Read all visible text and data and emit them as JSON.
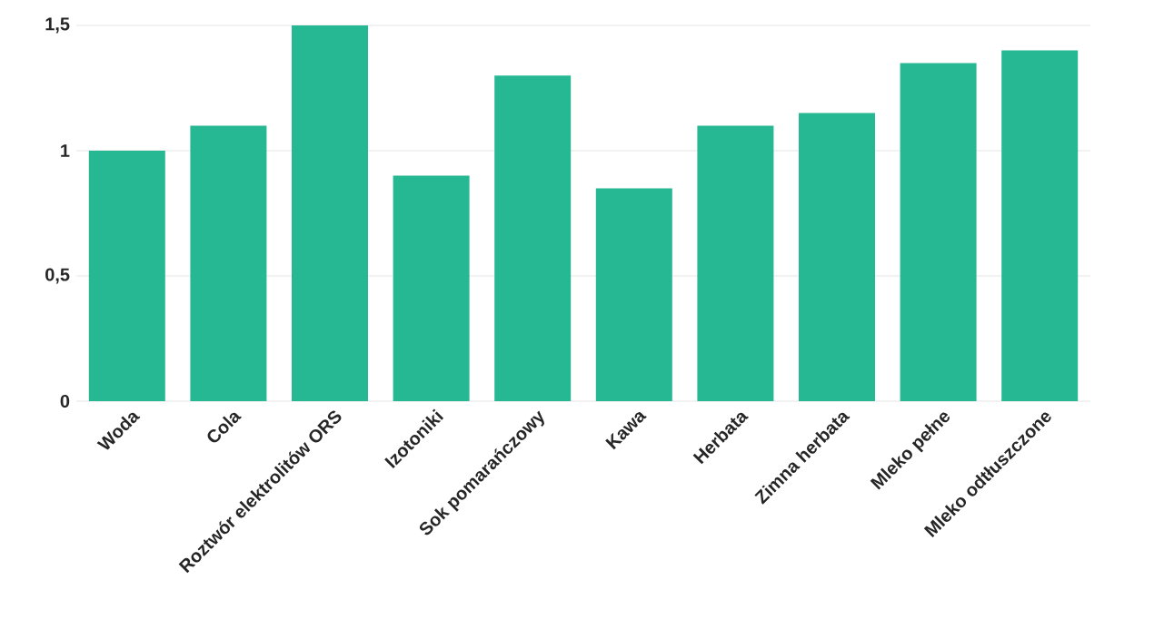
{
  "chart_data": {
    "type": "bar",
    "categories": [
      "Woda",
      "Cola",
      "Roztwór elektrolitów ORS",
      "Izotoniki",
      "Sok pomarańczowy",
      "Kawa",
      "Herbata",
      "Zimna herbata",
      "Mleko pełne",
      "Mleko odtłuszczone"
    ],
    "values": [
      1,
      1.1,
      1.5,
      0.9,
      1.3,
      0.85,
      1.1,
      1.15,
      1.35,
      1.4
    ],
    "color": "#26b892",
    "ylim": [
      0,
      1.5
    ],
    "yticks": [
      {
        "value": 0,
        "label": "0"
      },
      {
        "value": 0.5,
        "label": "0,5"
      },
      {
        "value": 1,
        "label": "1"
      },
      {
        "value": 1.5,
        "label": "1,5"
      }
    ],
    "grid": "y"
  }
}
